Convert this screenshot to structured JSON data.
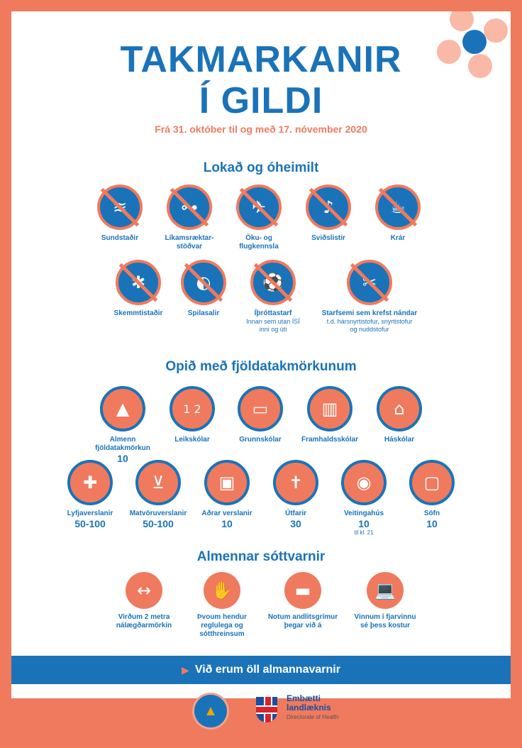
{
  "header": {
    "title_line1": "TAKMARKANIR",
    "title_line2": "Í GILDI",
    "subtitle": "Frá 31. október til og með 17. nóvember 2020"
  },
  "colors": {
    "blue": "#1a73b8",
    "coral": "#f07a5e"
  },
  "closed": {
    "title": "Lokað og óheimilt",
    "items": [
      {
        "label": "Sundstaðir",
        "label2": "",
        "icon": "swimming-icon",
        "glyph": "≋"
      },
      {
        "label": "Líkamsræktar-",
        "label2": "stöðvar",
        "icon": "gym-icon",
        "glyph": "⊶"
      },
      {
        "label": "Öku- og",
        "label2": "flugkennsla",
        "icon": "driving-lesson-icon",
        "glyph": "✈"
      },
      {
        "label": "Sviðslistir",
        "label2": "",
        "icon": "performing-arts-icon",
        "glyph": "♪"
      },
      {
        "label": "Krár",
        "label2": "",
        "icon": "pub-icon",
        "glyph": "☕"
      },
      {
        "label": "Skemmtistaðir",
        "label2": "",
        "icon": "nightclub-icon",
        "glyph": "✱"
      },
      {
        "label": "Spilasalir",
        "label2": "",
        "icon": "arcade-icon",
        "glyph": "◐"
      },
      {
        "label": "Íþróttastarf",
        "sub1": "Innan sem utan ÍSÍ",
        "sub2": "inni og úti",
        "icon": "sports-icon",
        "glyph": "⚽"
      },
      {
        "label": "Starfsemi sem krefst nándar",
        "sub1": "t.d. hársnyrtistofur, snyrtistofur",
        "sub2": "og nuddstofur",
        "icon": "close-contact-services-icon",
        "glyph": "✂"
      }
    ]
  },
  "open": {
    "title": "Opið með fjöldatakmörkunum",
    "items": [
      {
        "label": "Almenn",
        "label2": "fjöldatakmörkun",
        "limit": "10",
        "icon": "group-limit-icon",
        "glyph": "▲"
      },
      {
        "label": "Leikskólar",
        "limit": "",
        "icon": "kindergarten-icon",
        "glyph": "1 2"
      },
      {
        "label": "Grunnskólar",
        "limit": "",
        "icon": "primary-school-icon",
        "glyph": "▭"
      },
      {
        "label": "Framhaldsskólar",
        "limit": "",
        "icon": "secondary-school-icon",
        "glyph": "▥"
      },
      {
        "label": "Háskólar",
        "limit": "",
        "icon": "university-icon",
        "glyph": "⌂"
      },
      {
        "label": "Lyfjaverslanir",
        "limit": "50-100",
        "icon": "pharmacy-icon",
        "glyph": "✚"
      },
      {
        "label": "Matvöruverslanir",
        "limit": "50-100",
        "icon": "grocery-icon",
        "glyph": "⊻"
      },
      {
        "label": "Aðrar verslanir",
        "limit": "10",
        "icon": "other-shops-icon",
        "glyph": "▣"
      },
      {
        "label": "Útfarir",
        "limit": "30",
        "icon": "funeral-icon",
        "glyph": "✝"
      },
      {
        "label": "Veitingahús",
        "limit": "10",
        "note": "til kl. 21",
        "icon": "restaurant-icon",
        "glyph": "◉"
      },
      {
        "label": "Söfn",
        "limit": "10",
        "icon": "museum-icon",
        "glyph": "▢"
      }
    ]
  },
  "general": {
    "title": "Almennar sóttvarnir",
    "items": [
      {
        "label": "Virðum 2 metra",
        "label2": "nálægðarmörkin",
        "label3": "",
        "icon": "distance-icon",
        "glyph": "↔"
      },
      {
        "label": "Þvoum hendur",
        "label2": "reglulega og",
        "label3": "sótthreinsum",
        "icon": "hand-wash-icon",
        "glyph": "✋"
      },
      {
        "label": "Notum andlitsgrímur",
        "label2": "þegar við á",
        "label3": "",
        "icon": "face-mask-icon",
        "glyph": "▬"
      },
      {
        "label": "Vinnum í fjarvinnu",
        "label2": "sé þess kostur",
        "label3": "",
        "icon": "remote-work-icon",
        "glyph": "💻"
      }
    ]
  },
  "banner": {
    "text": "Við erum öll almannavarnir"
  },
  "footer": {
    "emb_line1": "Embætti",
    "emb_line2": "landlæknis",
    "emb_line3": "Directorate of Health"
  }
}
